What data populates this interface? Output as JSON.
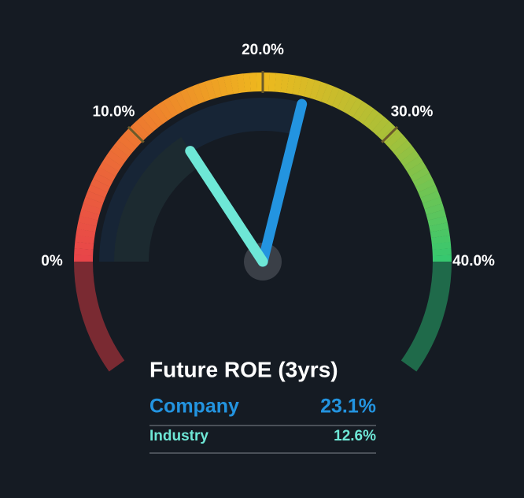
{
  "chart_data": {
    "type": "gauge",
    "title": "Future ROE (3yrs)",
    "ylim": [
      0,
      40
    ],
    "yticks": [
      {
        "value": 0,
        "label": "0%"
      },
      {
        "value": 10,
        "label": "10.0%"
      },
      {
        "value": 20,
        "label": "20.0%"
      },
      {
        "value": 30,
        "label": "30.0%"
      },
      {
        "value": 40,
        "label": "40.0%"
      }
    ],
    "series": [
      {
        "name": "Company",
        "color": "#2394e0",
        "values": [
          23.1
        ],
        "value_labels": [
          "23.1%"
        ]
      },
      {
        "name": "Industry",
        "color": "#6ee7d6",
        "values": [
          12.6
        ],
        "value_labels": [
          "12.6%"
        ]
      }
    ]
  }
}
